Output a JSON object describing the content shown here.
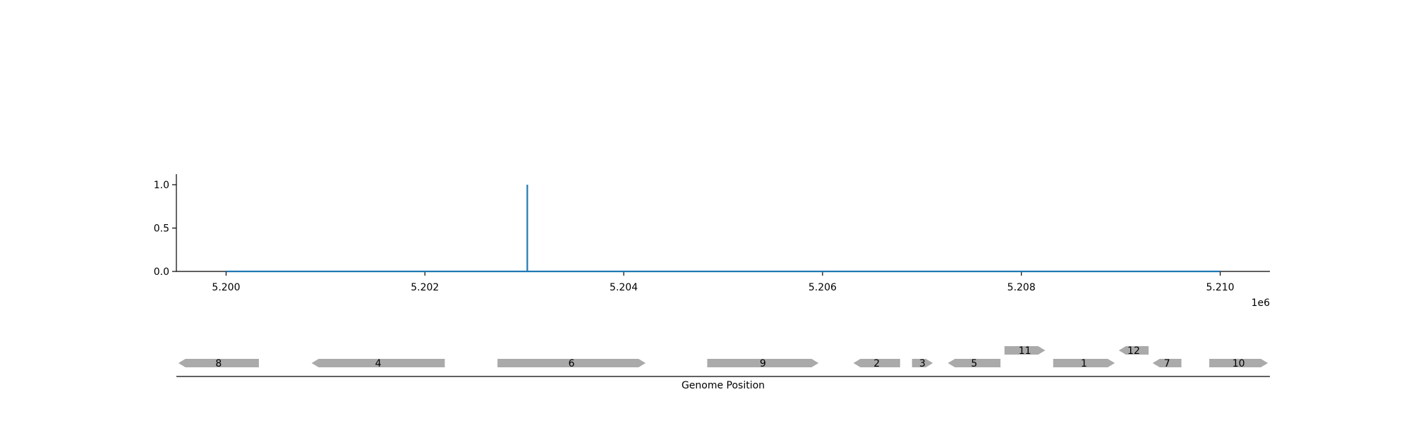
{
  "chart_data": [
    {
      "type": "line",
      "title": "",
      "xlabel": "",
      "ylabel": "",
      "x_offset_label": "1e6",
      "xlim": [
        5199500,
        5210500
      ],
      "ylim": [
        0,
        1.1
      ],
      "x_ticks": [
        5200000,
        5202000,
        5204000,
        5206000,
        5208000,
        5210000
      ],
      "x_tick_labels": [
        "5.200",
        "5.202",
        "5.204",
        "5.206",
        "5.208",
        "5.210"
      ],
      "y_ticks": [
        0.0,
        0.5,
        1.0
      ],
      "y_tick_labels": [
        "0.0",
        "0.5",
        "1.0"
      ],
      "grid": false,
      "series": [
        {
          "color": "#1f77b4",
          "x": [
            5200000,
            5203030,
            5203030,
            5203030,
            5203030,
            5210000
          ],
          "y": [
            0,
            0,
            1,
            1,
            0,
            0
          ]
        }
      ]
    },
    {
      "type": "gene_map",
      "xlabel": "Genome Position",
      "xlim": [
        5199500,
        5210500
      ],
      "gene_color": "#aaaaaa",
      "genes": [
        {
          "label": "8",
          "start": 5199520,
          "end": 5200330,
          "strand": "-",
          "row": 0
        },
        {
          "label": "4",
          "start": 5200860,
          "end": 5202200,
          "strand": "-",
          "row": 0
        },
        {
          "label": "6",
          "start": 5202730,
          "end": 5204220,
          "strand": "+",
          "row": 0
        },
        {
          "label": "9",
          "start": 5204840,
          "end": 5205960,
          "strand": "+",
          "row": 0
        },
        {
          "label": "2",
          "start": 5206310,
          "end": 5206780,
          "strand": "-",
          "row": 0
        },
        {
          "label": "3",
          "start": 5206900,
          "end": 5207110,
          "strand": "+",
          "row": 0
        },
        {
          "label": "5",
          "start": 5207260,
          "end": 5207790,
          "strand": "-",
          "row": 0
        },
        {
          "label": "11",
          "start": 5207830,
          "end": 5208240,
          "strand": "+",
          "row": 1
        },
        {
          "label": "1",
          "start": 5208320,
          "end": 5208940,
          "strand": "+",
          "row": 0
        },
        {
          "label": "12",
          "start": 5208980,
          "end": 5209280,
          "strand": "-",
          "row": 1
        },
        {
          "label": "7",
          "start": 5209320,
          "end": 5209610,
          "strand": "-",
          "row": 0
        },
        {
          "label": "10",
          "start": 5209890,
          "end": 5210480,
          "strand": "+",
          "row": 0
        }
      ]
    }
  ]
}
